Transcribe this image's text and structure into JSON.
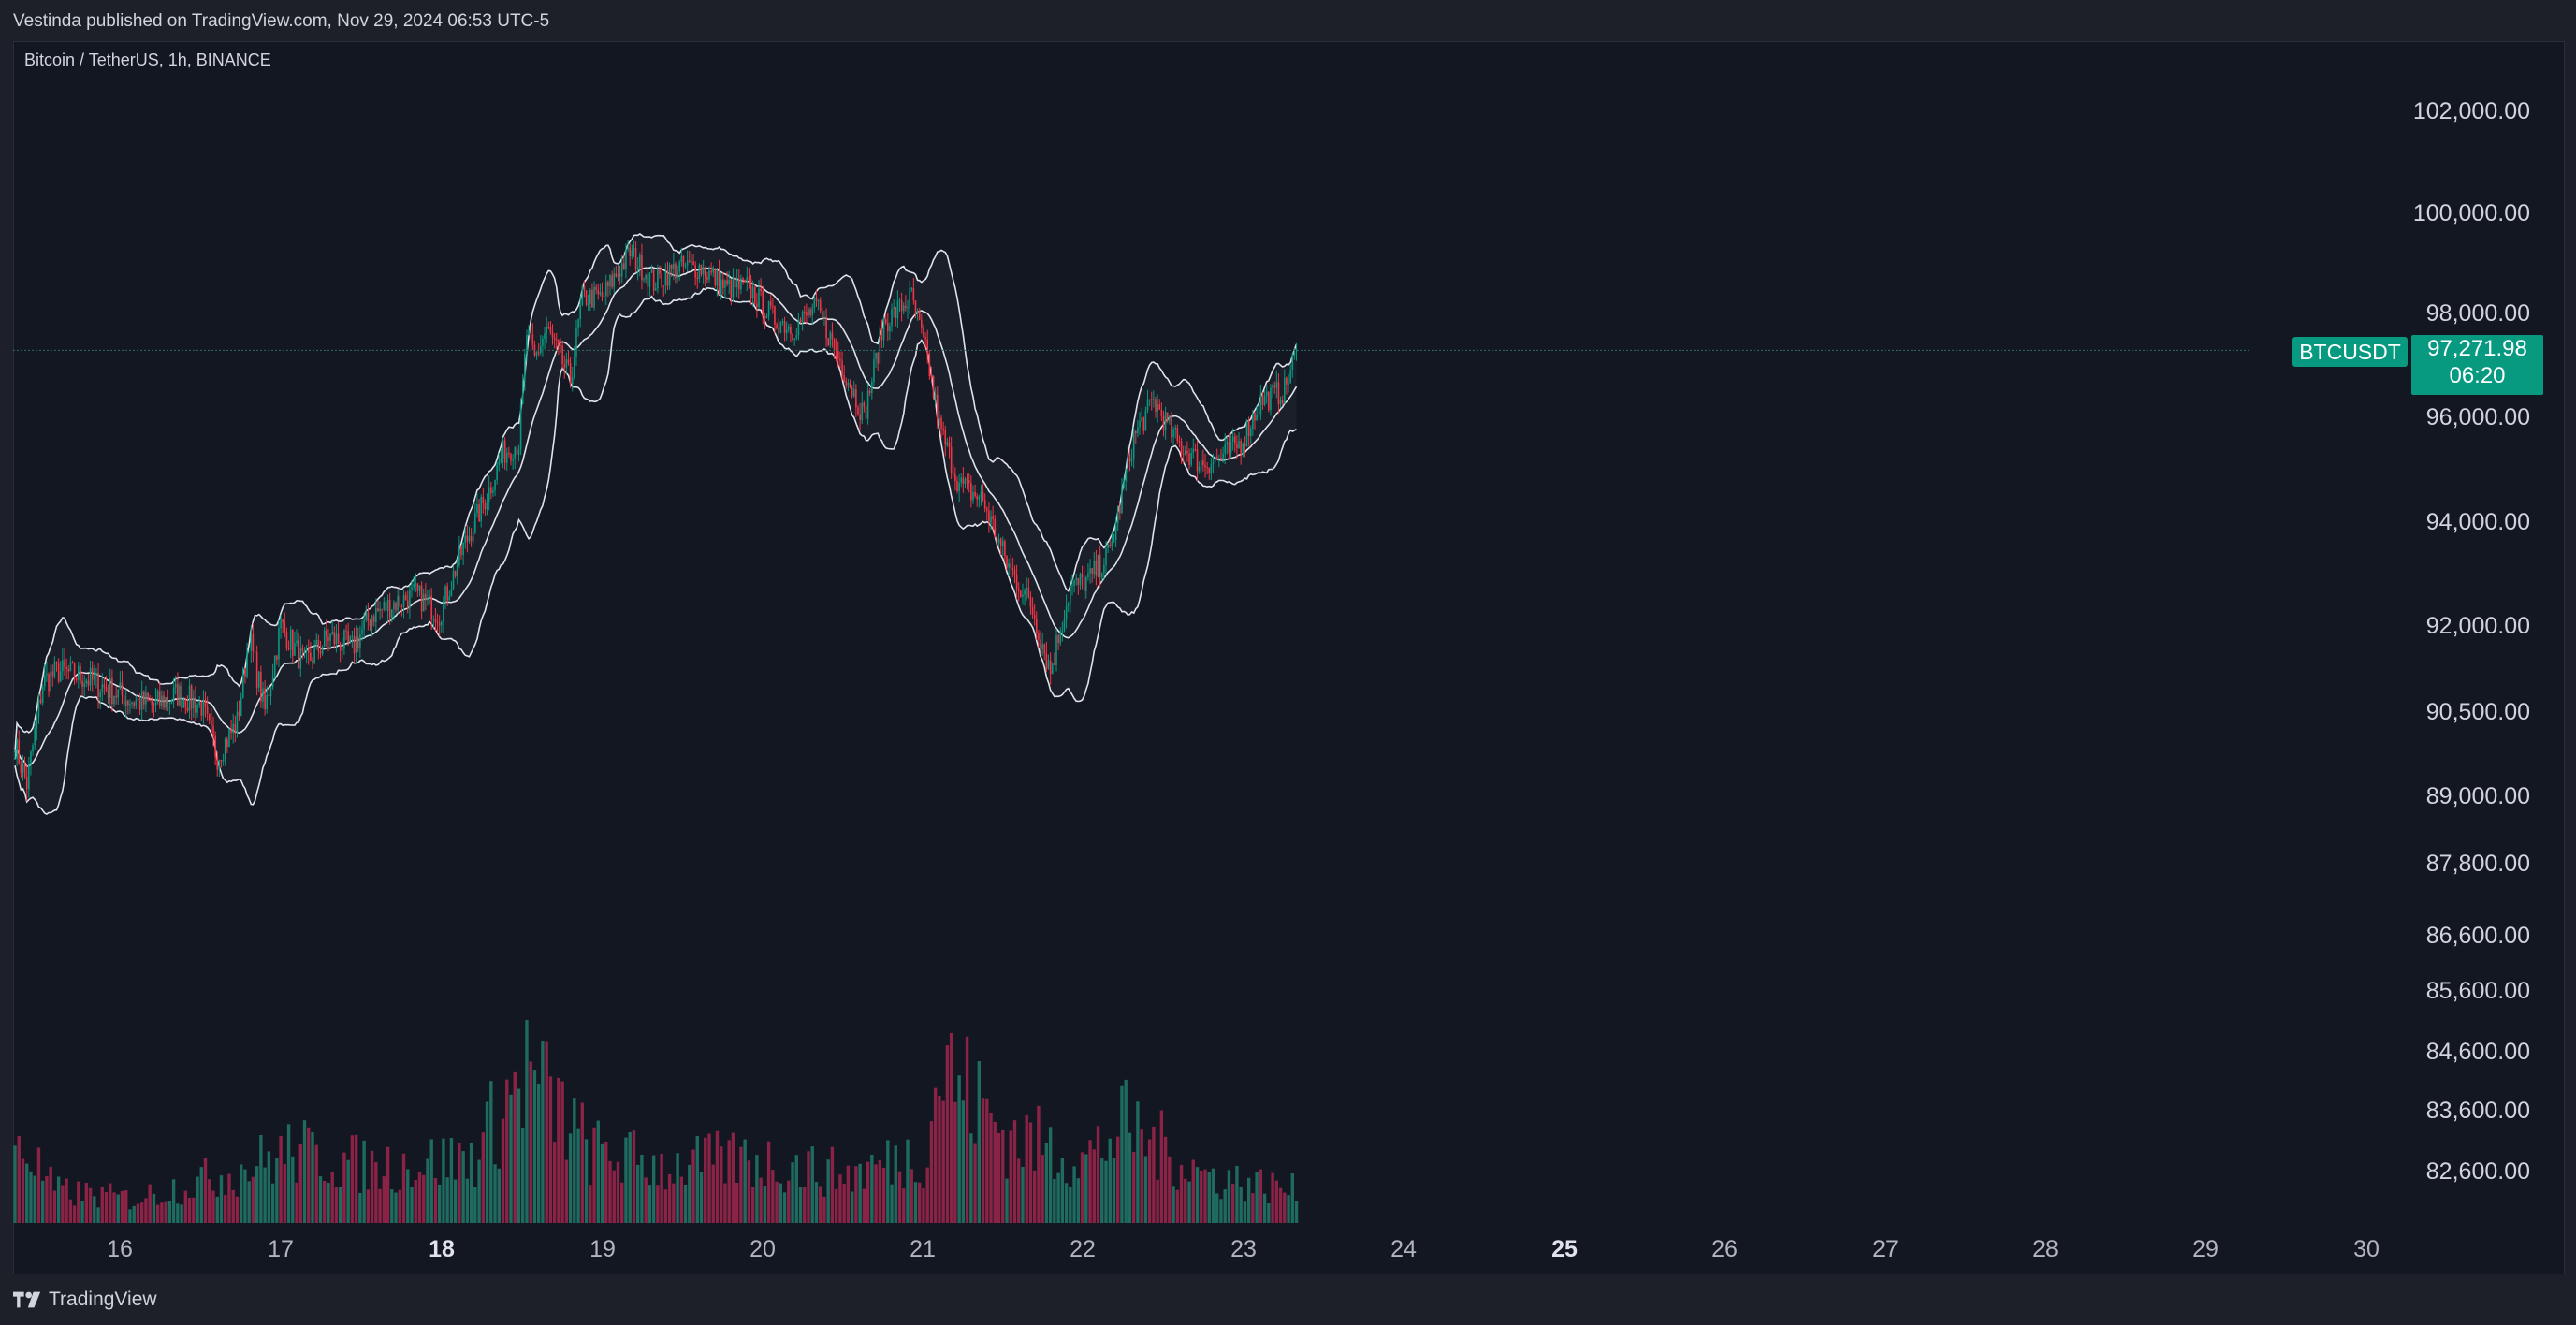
{
  "header": {
    "published": "Vestinda published on TradingView.com, Nov 29, 2024 06:53 UTC-5",
    "symbol_line": "Bitcoin / TetherUS, 1h, BINANCE"
  },
  "footer": {
    "brand": "TradingView",
    "logo_icon": "tradingview-logo-icon"
  },
  "price_label": {
    "symbol": "BTCUSDT",
    "last_price": "97,271.98",
    "countdown": "06:20",
    "color": "#089981"
  },
  "colors": {
    "up": "#089981",
    "down": "#f23645",
    "up_volume": "#1f6b5f",
    "down_volume": "#8a2346",
    "bands": "#e0e3eb",
    "background": "#131722"
  },
  "chart_data": {
    "type": "candlestick",
    "title": "Bitcoin / TetherUS, 1h, BINANCE",
    "overlay": "Bollinger Bands",
    "y_axis_labels": [
      "102,000.00",
      "100,000.00",
      "98,000.00",
      "96,000.00",
      "94,000.00",
      "92,000.00",
      "90,500.00",
      "89,000.00",
      "87,800.00",
      "86,600.00",
      "85,600.00",
      "84,600.00",
      "83,600.00",
      "82,600.00"
    ],
    "y_axis_values": [
      102000,
      100000,
      98000,
      96000,
      94000,
      92000,
      90500,
      89000,
      87800,
      86600,
      85600,
      84600,
      83600,
      82600
    ],
    "x_axis_labels": [
      "16",
      "17",
      "18",
      "19",
      "20",
      "21",
      "22",
      "23",
      "24",
      "25",
      "26",
      "27",
      "28",
      "29",
      "30"
    ],
    "x_axis_bold": [
      "18",
      "25"
    ],
    "last_price": 97271.98,
    "close_path": [
      {
        "t": 0,
        "p": 89900
      },
      {
        "t": 6,
        "p": 89200
      },
      {
        "t": 14,
        "p": 91000
      },
      {
        "t": 22,
        "p": 91200
      },
      {
        "t": 34,
        "p": 91100
      },
      {
        "t": 46,
        "p": 90900
      },
      {
        "t": 58,
        "p": 90700
      },
      {
        "t": 70,
        "p": 90600
      },
      {
        "t": 82,
        "p": 90800
      },
      {
        "t": 94,
        "p": 90600
      },
      {
        "t": 102,
        "p": 89700
      },
      {
        "t": 112,
        "p": 90300
      },
      {
        "t": 118,
        "p": 91800
      },
      {
        "t": 126,
        "p": 90500
      },
      {
        "t": 134,
        "p": 92000
      },
      {
        "t": 146,
        "p": 91300
      },
      {
        "t": 158,
        "p": 91800
      },
      {
        "t": 170,
        "p": 91600
      },
      {
        "t": 180,
        "p": 92200
      },
      {
        "t": 190,
        "p": 92400
      },
      {
        "t": 202,
        "p": 92600
      },
      {
        "t": 214,
        "p": 92200
      },
      {
        "t": 226,
        "p": 93500
      },
      {
        "t": 238,
        "p": 94500
      },
      {
        "t": 246,
        "p": 95300
      },
      {
        "t": 254,
        "p": 95500
      },
      {
        "t": 258,
        "p": 97600
      },
      {
        "t": 262,
        "p": 97100
      },
      {
        "t": 268,
        "p": 97700
      },
      {
        "t": 280,
        "p": 96700
      },
      {
        "t": 286,
        "p": 98300
      },
      {
        "t": 296,
        "p": 98300
      },
      {
        "t": 310,
        "p": 99200
      },
      {
        "t": 322,
        "p": 98600
      },
      {
        "t": 334,
        "p": 98900
      },
      {
        "t": 346,
        "p": 98900
      },
      {
        "t": 358,
        "p": 98500
      },
      {
        "t": 370,
        "p": 98500
      },
      {
        "t": 382,
        "p": 97900
      },
      {
        "t": 392,
        "p": 97700
      },
      {
        "t": 404,
        "p": 98100
      },
      {
        "t": 418,
        "p": 96900
      },
      {
        "t": 428,
        "p": 96000
      },
      {
        "t": 438,
        "p": 97800
      },
      {
        "t": 452,
        "p": 98300
      },
      {
        "t": 460,
        "p": 97100
      },
      {
        "t": 466,
        "p": 95800
      },
      {
        "t": 476,
        "p": 94700
      },
      {
        "t": 488,
        "p": 94400
      },
      {
        "t": 500,
        "p": 93200
      },
      {
        "t": 512,
        "p": 92400
      },
      {
        "t": 522,
        "p": 91200
      },
      {
        "t": 532,
        "p": 92700
      },
      {
        "t": 542,
        "p": 92900
      },
      {
        "t": 552,
        "p": 93400
      },
      {
        "t": 564,
        "p": 95600
      },
      {
        "t": 574,
        "p": 96300
      },
      {
        "t": 586,
        "p": 95500
      },
      {
        "t": 598,
        "p": 95100
      },
      {
        "t": 608,
        "p": 95200
      },
      {
        "t": 618,
        "p": 95500
      },
      {
        "t": 628,
        "p": 96300
      },
      {
        "t": 640,
        "p": 96500
      },
      {
        "t": 646,
        "p": 97272
      }
    ],
    "volume_path": [
      {
        "t": 0,
        "v": 0.55
      },
      {
        "t": 20,
        "v": 0.2
      },
      {
        "t": 60,
        "v": 0.15
      },
      {
        "t": 110,
        "v": 0.32
      },
      {
        "t": 140,
        "v": 0.45
      },
      {
        "t": 180,
        "v": 0.35
      },
      {
        "t": 230,
        "v": 0.4
      },
      {
        "t": 258,
        "v": 0.95
      },
      {
        "t": 290,
        "v": 0.45
      },
      {
        "t": 330,
        "v": 0.35
      },
      {
        "t": 370,
        "v": 0.4
      },
      {
        "t": 420,
        "v": 0.3
      },
      {
        "t": 460,
        "v": 0.45
      },
      {
        "t": 466,
        "v": 1.0
      },
      {
        "t": 500,
        "v": 0.55
      },
      {
        "t": 540,
        "v": 0.4
      },
      {
        "t": 560,
        "v": 0.6
      },
      {
        "t": 600,
        "v": 0.3
      },
      {
        "t": 646,
        "v": 0.2
      }
    ],
    "bar_count": 647,
    "grid": false
  }
}
